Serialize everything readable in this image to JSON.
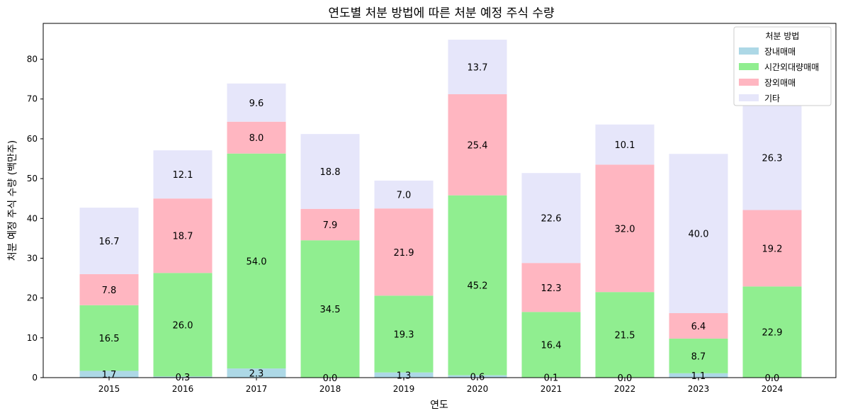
{
  "chart_data": {
    "type": "bar",
    "stacked": true,
    "title": "연도별 처분 방법에 따른 처분 예정 주식 수량",
    "xlabel": "연도",
    "ylabel": "처분 예정 주식 수량 (백만주)",
    "categories": [
      "2015",
      "2016",
      "2017",
      "2018",
      "2019",
      "2020",
      "2021",
      "2022",
      "2023",
      "2024"
    ],
    "ylim": [
      0,
      89
    ],
    "yticks": [
      0,
      10,
      20,
      30,
      40,
      50,
      60,
      70,
      80
    ],
    "legend": {
      "title": "처분 방법",
      "position": "top-right"
    },
    "series": [
      {
        "name": "장내매매",
        "color": "#add8e6",
        "values": [
          1.7,
          0.3,
          2.3,
          0.0,
          1.3,
          0.6,
          0.1,
          0.0,
          1.1,
          0.0
        ],
        "labels": [
          "1.7",
          "0.3",
          "2.3",
          "0.0",
          "1.3",
          "0.6",
          "0.1",
          "0.0",
          "1.1",
          "0.0"
        ]
      },
      {
        "name": "시간외대량매매",
        "color": "#90ee90",
        "values": [
          16.5,
          26.0,
          54.0,
          34.5,
          19.3,
          45.2,
          16.4,
          21.5,
          8.7,
          22.9
        ],
        "labels": [
          "16.5",
          "26.0",
          "54.0",
          "34.5",
          "19.3",
          "45.2",
          "16.4",
          "21.5",
          "8.7",
          "22.9"
        ]
      },
      {
        "name": "장외매매",
        "color": "#ffb6c1",
        "values": [
          7.8,
          18.7,
          8.0,
          7.9,
          21.9,
          25.4,
          12.3,
          32.0,
          6.4,
          19.2
        ],
        "labels": [
          "7.8",
          "18.7",
          "8.0",
          "7.9",
          "21.9",
          "25.4",
          "12.3",
          "32.0",
          "6.4",
          "19.2"
        ]
      },
      {
        "name": "기타",
        "color": "#e6e6fa",
        "values": [
          16.7,
          12.1,
          9.6,
          18.8,
          7.0,
          13.7,
          22.6,
          10.1,
          40.0,
          26.3
        ],
        "labels": [
          "16.7",
          "12.1",
          "9.6",
          "18.8",
          "7.0",
          "13.7",
          "22.6",
          "10.1",
          "40.0",
          "26.3"
        ]
      }
    ]
  }
}
